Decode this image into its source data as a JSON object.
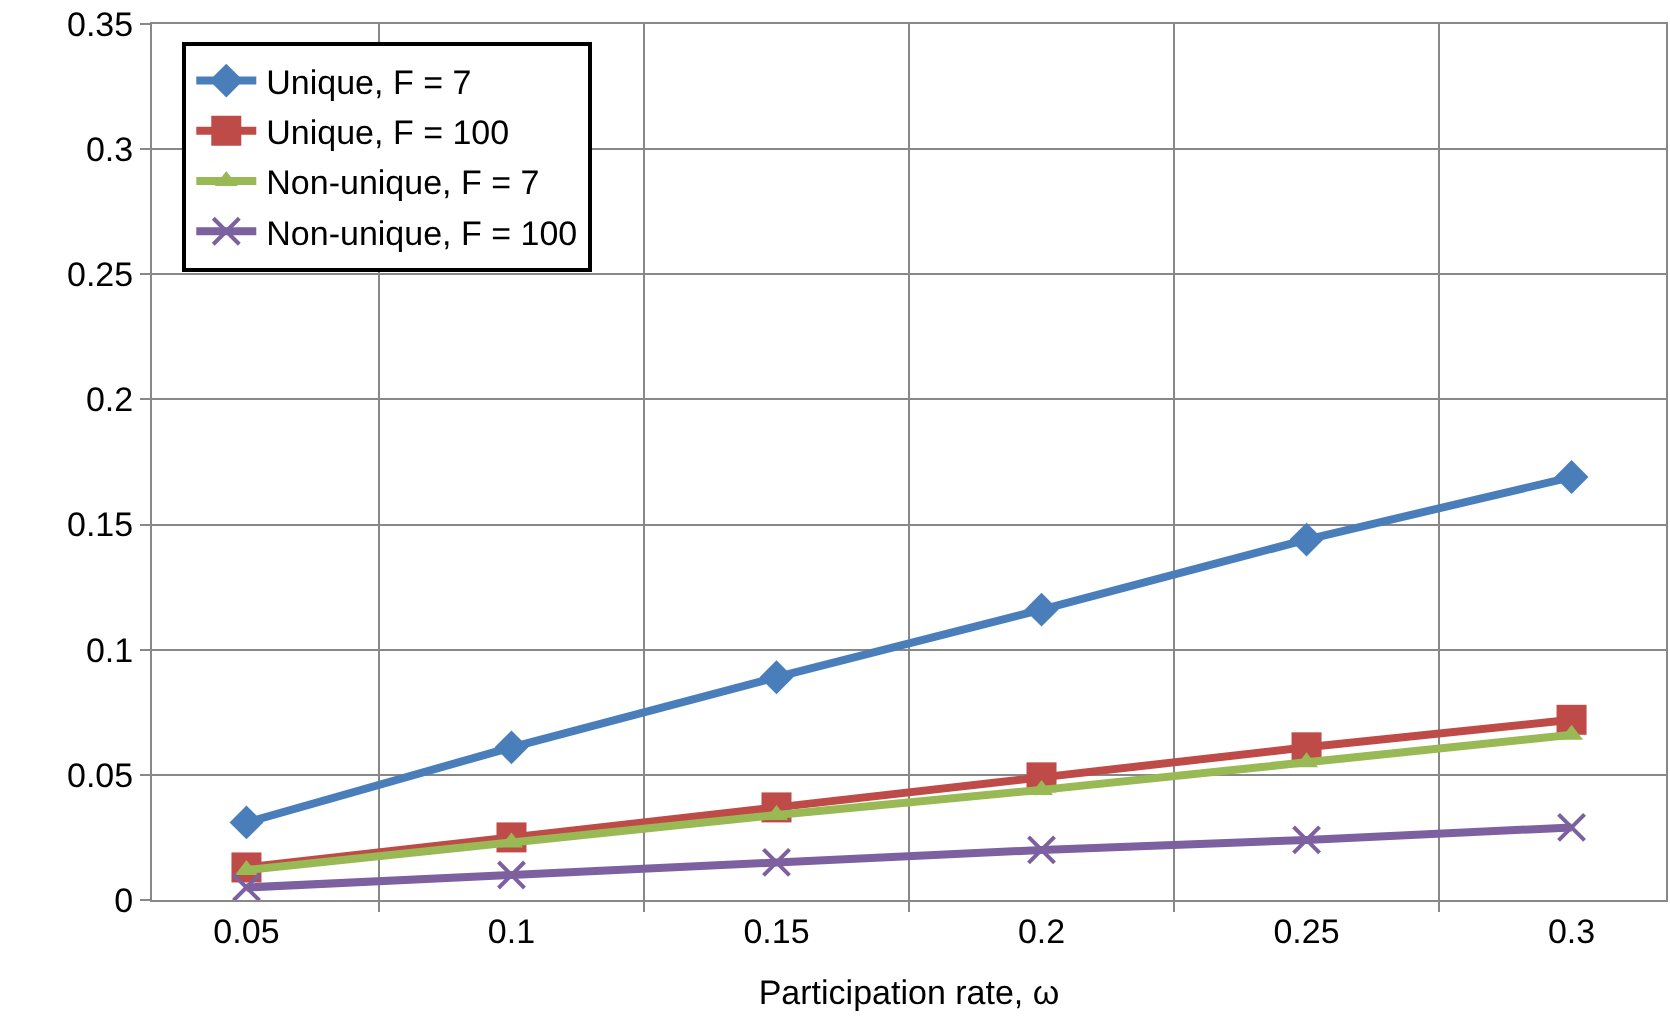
{
  "chart_data": {
    "type": "line",
    "xlabel": "Participation rate, ω",
    "categories": [
      "0.05",
      "0.1",
      "0.15",
      "0.2",
      "0.25",
      "0.3"
    ],
    "ylim": [
      0,
      0.35
    ],
    "yticks": [
      0,
      0.05,
      0.1,
      0.15,
      0.2,
      0.25,
      0.3,
      0.35
    ],
    "grid": true,
    "legend": "top left",
    "series": [
      {
        "name": "Unique, F = 7",
        "color": "#4a7ebb",
        "marker": "diamond",
        "values": [
          0.031,
          0.061,
          0.089,
          0.116,
          0.144,
          0.169
        ]
      },
      {
        "name": "Unique, F = 100",
        "color": "#be4b48",
        "marker": "square",
        "values": [
          0.013,
          0.025,
          0.037,
          0.049,
          0.061,
          0.072
        ]
      },
      {
        "name": "Non-unique, F = 7",
        "color": "#98b954",
        "marker": "triangle",
        "values": [
          0.012,
          0.023,
          0.034,
          0.044,
          0.055,
          0.066
        ]
      },
      {
        "name": "Non-unique, F = 100",
        "color": "#7d60a0",
        "marker": "cross",
        "values": [
          0.005,
          0.01,
          0.015,
          0.02,
          0.024,
          0.029
        ]
      }
    ]
  }
}
